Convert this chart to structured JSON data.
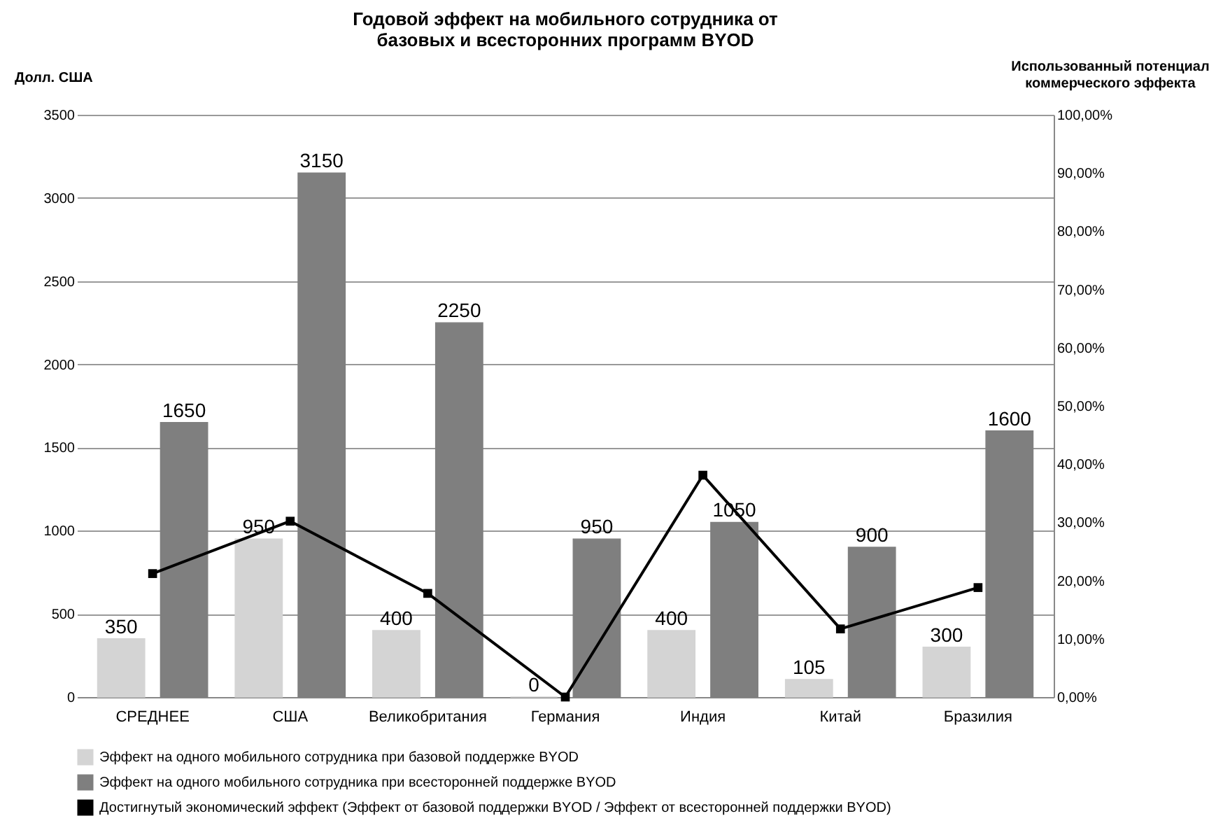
{
  "chart_data": {
    "type": "bar",
    "title": [
      "Годовой эффект на мобильного сотрудника от",
      "базовых и всесторонних программ BYOD"
    ],
    "ylabel": "Долл. США",
    "y2label": [
      "Использованный потенциал",
      "коммерческого эффекта"
    ],
    "categories": [
      "СРЕДНЕЕ",
      "США",
      "Великобритания",
      "Германия",
      "Индия",
      "Китай",
      "Бразилия"
    ],
    "series": [
      {
        "name": "Эффект на одного мобильного сотрудника при базовой поддержке BYOD",
        "color": "#d4d4d4",
        "values": [
          350,
          950,
          400,
          0,
          400,
          105,
          300
        ],
        "value_labels": [
          "350",
          "950",
          "400",
          "0",
          "400",
          "105",
          "300"
        ]
      },
      {
        "name": "Эффект на одного мобильного сотрудника при всесторонней поддержке BYOD",
        "color": "#7f7f7f",
        "values": [
          1650,
          3150,
          2250,
          950,
          1050,
          900,
          1600
        ],
        "value_labels": [
          "1650",
          "3150",
          "2250",
          "950",
          "1050",
          "900",
          "1600"
        ]
      },
      {
        "name": "Достигнутый экономический эффект (Эффект от базовой поддержки BYOD / Эффект от всесторонней поддержки BYOD)",
        "type": "line",
        "axis": "y2",
        "color": "#000000",
        "marker": "square",
        "values": [
          0.212,
          0.302,
          0.178,
          0,
          0.381,
          0.117,
          0.188
        ]
      }
    ],
    "ylim": [
      0,
      3500
    ],
    "yticks": [
      0,
      500,
      1000,
      1500,
      2000,
      2500,
      3000,
      3500
    ],
    "y2lim": [
      0,
      1
    ],
    "y2ticks": [
      {
        "value": 0,
        "label": "0,00%"
      },
      {
        "value": 0.1,
        "label": "10,00%"
      },
      {
        "value": 0.2,
        "label": "20,00%"
      },
      {
        "value": 0.3,
        "label": "30,00%"
      },
      {
        "value": 0.4,
        "label": "40,00%"
      },
      {
        "value": 0.5,
        "label": "50,00%"
      },
      {
        "value": 0.6,
        "label": "60,00%"
      },
      {
        "value": 0.7,
        "label": "70,00%"
      },
      {
        "value": 0.8,
        "label": "80,00%"
      },
      {
        "value": 0.9,
        "label": "90,00%"
      },
      {
        "value": 1,
        "label": "100,00%"
      }
    ],
    "grid": "y",
    "legend": "bottom"
  }
}
